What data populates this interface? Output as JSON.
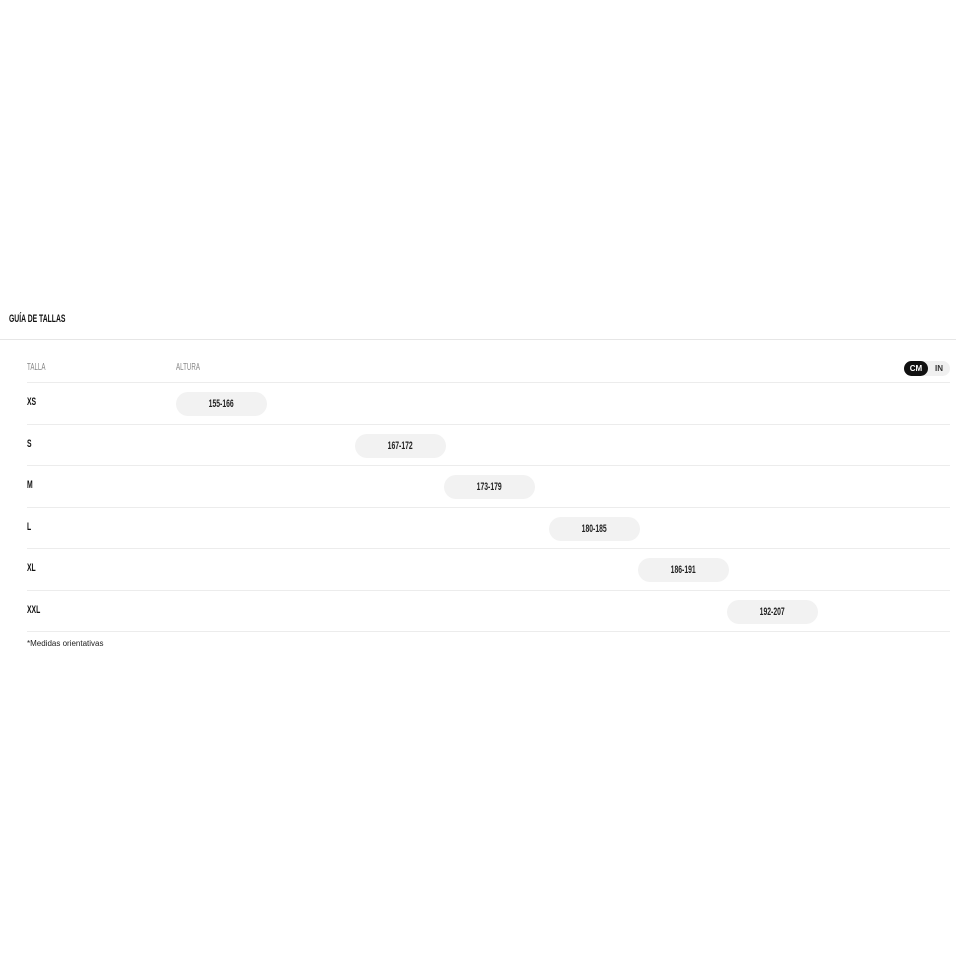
{
  "title": "GUÍA DE TALLAS",
  "headers": {
    "size": "TALLA",
    "height": "ALTURA"
  },
  "unit_toggle": {
    "options": [
      "CM",
      "IN"
    ],
    "selected": "CM"
  },
  "rows": [
    {
      "size": "XS",
      "range": "155-166",
      "min": 155,
      "max": 166
    },
    {
      "size": "S",
      "range": "167-172",
      "min": 167,
      "max": 172
    },
    {
      "size": "M",
      "range": "173-179",
      "min": 173,
      "max": 179
    },
    {
      "size": "L",
      "range": "180-185",
      "min": 180,
      "max": 185
    },
    {
      "size": "XL",
      "range": "186-191",
      "min": 186,
      "max": 191
    },
    {
      "size": "XXL",
      "range": "192-207",
      "min": 192,
      "max": 207
    }
  ],
  "footnote": "*Medidas orientativas",
  "colors": {
    "pill": "#f2f2f2",
    "toggle_active": "#111111"
  }
}
